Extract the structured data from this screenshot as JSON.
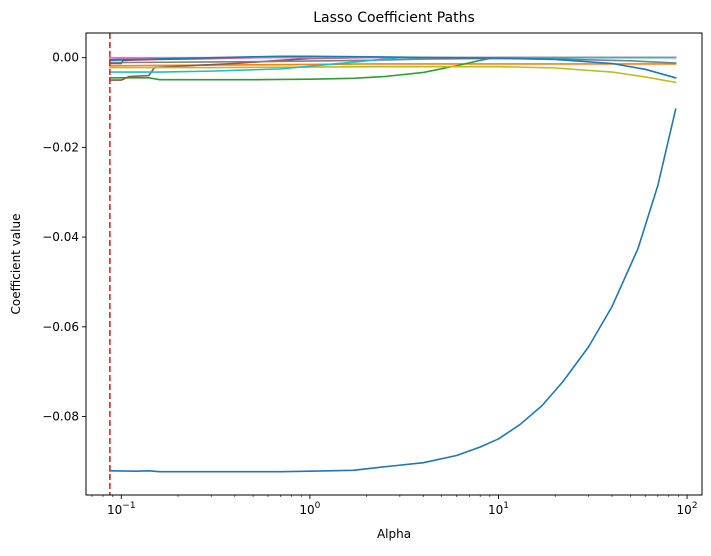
{
  "chart_data": {
    "type": "line",
    "title": "Lasso Coefficient Paths",
    "xlabel": "Alpha",
    "ylabel": "Coefficient value",
    "xscale": "log",
    "xlim": [
      0.065,
      120
    ],
    "ylim": [
      -0.0975,
      0.0055
    ],
    "grid": false,
    "legend": "none",
    "x_ticks": [
      {
        "value": 0.1,
        "base": "10",
        "exp": "−1"
      },
      {
        "value": 1,
        "base": "10",
        "exp": "0"
      },
      {
        "value": 10,
        "base": "10",
        "exp": "1"
      },
      {
        "value": 100,
        "base": "10",
        "exp": "2"
      }
    ],
    "y_ticks": [
      {
        "value": 0.0,
        "label": "0.00"
      },
      {
        "value": -0.02,
        "label": "−0.02"
      },
      {
        "value": -0.04,
        "label": "−0.04"
      },
      {
        "value": -0.06,
        "label": "−0.06"
      },
      {
        "value": -0.08,
        "label": "−0.08"
      }
    ],
    "vline": {
      "x": 0.087,
      "color": "#d62728",
      "style": "dashed"
    },
    "series": [
      {
        "color": "#1f77b4",
        "points": [
          [
            0.087,
            -0.0921
          ],
          [
            0.12,
            -0.0922
          ],
          [
            0.14,
            -0.0921
          ],
          [
            0.16,
            -0.0923
          ],
          [
            0.3,
            -0.0923
          ],
          [
            0.7,
            -0.0923
          ],
          [
            1.0,
            -0.0922
          ],
          [
            1.7,
            -0.092
          ],
          [
            2.5,
            -0.0912
          ],
          [
            4.0,
            -0.0903
          ],
          [
            6.0,
            -0.0887
          ],
          [
            8.0,
            -0.0868
          ],
          [
            10.0,
            -0.085
          ],
          [
            13.0,
            -0.0818
          ],
          [
            17.0,
            -0.0776
          ],
          [
            22.0,
            -0.0722
          ],
          [
            30.0,
            -0.0645
          ],
          [
            40.0,
            -0.0555
          ],
          [
            55.0,
            -0.0425
          ],
          [
            70.0,
            -0.0285
          ],
          [
            87.0,
            -0.0115
          ]
        ]
      },
      {
        "color": "#ff7f0e",
        "points": [
          [
            0.087,
            -0.0018
          ],
          [
            0.2,
            -0.0017
          ],
          [
            0.5,
            -0.0016
          ],
          [
            1.0,
            -0.0015
          ],
          [
            2.0,
            -0.0014
          ],
          [
            4.0,
            -0.0014
          ],
          [
            10.0,
            -0.0014
          ],
          [
            87.0,
            -0.0014
          ]
        ]
      },
      {
        "color": "#2ca02c",
        "points": [
          [
            0.087,
            -0.0045
          ],
          [
            0.14,
            -0.0045
          ],
          [
            0.16,
            -0.0049
          ],
          [
            0.5,
            -0.0049
          ],
          [
            1.0,
            -0.0048
          ],
          [
            1.7,
            -0.0046
          ],
          [
            2.5,
            -0.0042
          ],
          [
            4.0,
            -0.0033
          ],
          [
            6.0,
            -0.0018
          ],
          [
            8.0,
            -0.0006
          ],
          [
            9.0,
            -0.0002
          ],
          [
            10.0,
            0.0
          ],
          [
            87.0,
            0.0
          ]
        ]
      },
      {
        "color": "#d62728",
        "points": [
          [
            0.087,
            -0.0013
          ],
          [
            0.1,
            -0.0013
          ],
          [
            0.102,
            -0.0006
          ],
          [
            0.15,
            -0.0004
          ],
          [
            0.3,
            -0.0002
          ],
          [
            0.5,
            0.0
          ],
          [
            87.0,
            0.0
          ]
        ]
      },
      {
        "color": "#9467bd",
        "points": [
          [
            0.087,
            -0.0004
          ],
          [
            0.13,
            -0.0003
          ],
          [
            0.15,
            -0.0002
          ],
          [
            0.3,
            -0.0001
          ],
          [
            0.6,
            0.0
          ],
          [
            87.0,
            0.0
          ]
        ]
      },
      {
        "color": "#8c564b",
        "points": [
          [
            0.087,
            -0.005
          ],
          [
            0.1,
            -0.005
          ],
          [
            0.11,
            -0.0042
          ],
          [
            0.14,
            -0.004
          ],
          [
            0.15,
            -0.0022
          ],
          [
            0.2,
            -0.0019
          ],
          [
            0.4,
            -0.0013
          ],
          [
            0.7,
            -0.0006
          ],
          [
            1.0,
            -0.0002
          ],
          [
            2.0,
            0.0
          ],
          [
            87.0,
            0.0
          ]
        ]
      },
      {
        "color": "#e377c2",
        "points": [
          [
            0.087,
            0.0
          ],
          [
            87.0,
            0.0
          ]
        ]
      },
      {
        "color": "#7f7f7f",
        "points": [
          [
            0.087,
            -0.0011
          ],
          [
            0.5,
            -0.0009
          ],
          [
            2.0,
            -0.0006
          ],
          [
            4.0,
            -0.0003
          ],
          [
            8.0,
            -0.0002
          ],
          [
            20.0,
            -0.0003
          ],
          [
            50.0,
            -0.0007
          ],
          [
            87.0,
            -0.0012
          ]
        ]
      },
      {
        "color": "#bcbd22",
        "points": [
          [
            0.087,
            -0.0022
          ],
          [
            0.3,
            -0.0022
          ],
          [
            1.0,
            -0.0021
          ],
          [
            3.0,
            -0.002
          ],
          [
            10.0,
            -0.002
          ],
          [
            20.0,
            -0.0023
          ],
          [
            40.0,
            -0.0032
          ],
          [
            60.0,
            -0.0043
          ],
          [
            87.0,
            -0.0055
          ]
        ]
      },
      {
        "color": "#17becf",
        "points": [
          [
            0.087,
            -0.0032
          ],
          [
            0.16,
            -0.0032
          ],
          [
            0.3,
            -0.003
          ],
          [
            0.7,
            -0.0025
          ],
          [
            1.0,
            -0.0019
          ],
          [
            1.7,
            -0.001
          ],
          [
            2.5,
            -0.0003
          ],
          [
            3.0,
            0.0
          ],
          [
            87.0,
            0.0
          ]
        ]
      },
      {
        "color": "#1f77b4",
        "points": [
          [
            0.087,
            -0.0006
          ],
          [
            0.15,
            -0.0003
          ],
          [
            0.3,
            0.0
          ],
          [
            0.5,
            0.0002
          ],
          [
            0.7,
            0.0003
          ],
          [
            1.0,
            0.0003
          ],
          [
            2.0,
            0.0002
          ],
          [
            5.0,
            0.0
          ],
          [
            10.0,
            -0.0001
          ],
          [
            20.0,
            -0.0004
          ],
          [
            40.0,
            -0.0013
          ],
          [
            60.0,
            -0.0026
          ],
          [
            87.0,
            -0.0045
          ]
        ]
      }
    ]
  }
}
